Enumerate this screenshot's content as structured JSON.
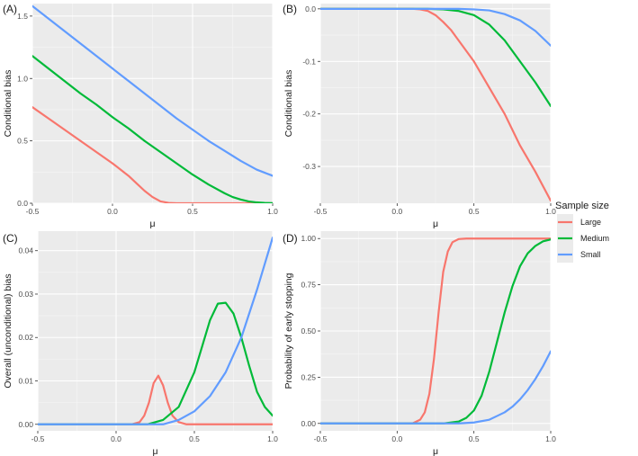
{
  "chart_data": [
    {
      "type": "line",
      "tag": "(A)",
      "xlabel": "μ",
      "ylabel": "Conditional bias",
      "xlim": [
        -0.5,
        1.0
      ],
      "ylim": [
        0,
        1.6
      ],
      "xticks": [
        -0.5,
        0.0,
        0.5,
        1.0
      ],
      "xtick_labels": [
        "-0.5",
        "0.0",
        "0.5",
        "1.0"
      ],
      "yticks": [
        0,
        0.5,
        1.0,
        1.5
      ],
      "ytick_labels": [
        "0.0",
        "0.5",
        "1.0",
        "1.5"
      ],
      "grid": true,
      "series": [
        {
          "name": "Large",
          "x": [
            -0.5,
            -0.4,
            -0.3,
            -0.2,
            -0.1,
            0.0,
            0.1,
            0.15,
            0.2,
            0.25,
            0.3,
            0.35,
            0.4,
            0.45,
            0.5,
            0.6,
            0.7,
            0.8,
            0.9,
            1.0
          ],
          "y": [
            0.77,
            0.68,
            0.59,
            0.5,
            0.41,
            0.32,
            0.22,
            0.16,
            0.1,
            0.05,
            0.015,
            0.003,
            0,
            0,
            0,
            0,
            0,
            0,
            0,
            0
          ]
        },
        {
          "name": "Medium",
          "x": [
            -0.5,
            -0.4,
            -0.3,
            -0.2,
            -0.1,
            0.0,
            0.1,
            0.2,
            0.3,
            0.4,
            0.5,
            0.6,
            0.7,
            0.75,
            0.8,
            0.85,
            0.9,
            0.95,
            1.0
          ],
          "y": [
            1.18,
            1.08,
            0.98,
            0.88,
            0.79,
            0.69,
            0.6,
            0.5,
            0.41,
            0.32,
            0.23,
            0.15,
            0.08,
            0.05,
            0.03,
            0.015,
            0.007,
            0.003,
            0.001
          ]
        },
        {
          "name": "Small",
          "x": [
            -0.5,
            -0.4,
            -0.3,
            -0.2,
            -0.1,
            0.0,
            0.1,
            0.2,
            0.3,
            0.4,
            0.5,
            0.6,
            0.7,
            0.8,
            0.9,
            1.0
          ],
          "y": [
            1.58,
            1.48,
            1.38,
            1.28,
            1.18,
            1.08,
            0.98,
            0.88,
            0.78,
            0.68,
            0.59,
            0.5,
            0.42,
            0.34,
            0.27,
            0.22
          ]
        }
      ]
    },
    {
      "type": "line",
      "tag": "(B)",
      "xlabel": "μ",
      "ylabel": "Conditional bias",
      "xlim": [
        -0.5,
        1.0
      ],
      "ylim": [
        -0.37,
        0.01
      ],
      "xticks": [
        -0.5,
        0.0,
        0.5,
        1.0
      ],
      "xtick_labels": [
        "-0.5",
        "0.0",
        "0.5",
        "1.0"
      ],
      "yticks": [
        0.0,
        -0.1,
        -0.2,
        -0.3
      ],
      "ytick_labels": [
        "0.0",
        "-0.1",
        "-0.2",
        "-0.3"
      ],
      "grid": true,
      "series": [
        {
          "name": "Large",
          "x": [
            -0.5,
            0.0,
            0.1,
            0.15,
            0.2,
            0.25,
            0.3,
            0.35,
            0.4,
            0.5,
            0.6,
            0.7,
            0.8,
            0.9,
            1.0
          ],
          "y": [
            0,
            0,
            0,
            -0.001,
            -0.004,
            -0.012,
            -0.025,
            -0.04,
            -0.06,
            -0.1,
            -0.15,
            -0.2,
            -0.26,
            -0.31,
            -0.365
          ]
        },
        {
          "name": "Medium",
          "x": [
            -0.5,
            0.2,
            0.3,
            0.4,
            0.5,
            0.6,
            0.7,
            0.8,
            0.9,
            1.0
          ],
          "y": [
            0,
            0,
            -0.001,
            -0.004,
            -0.012,
            -0.03,
            -0.06,
            -0.1,
            -0.14,
            -0.185
          ]
        },
        {
          "name": "Small",
          "x": [
            -0.5,
            0.4,
            0.5,
            0.6,
            0.7,
            0.8,
            0.9,
            1.0
          ],
          "y": [
            0,
            0,
            -0.001,
            -0.003,
            -0.01,
            -0.022,
            -0.042,
            -0.07
          ]
        }
      ]
    },
    {
      "type": "line",
      "tag": "(C)",
      "xlabel": "μ",
      "ylabel": "Overall (unconditional) bias",
      "xlim": [
        -0.5,
        1.0
      ],
      "ylim": [
        -0.0015,
        0.0445
      ],
      "xticks": [
        -0.5,
        0.0,
        0.5,
        1.0
      ],
      "xtick_labels": [
        "-0.5",
        "0.0",
        "0.5",
        "1.0"
      ],
      "yticks": [
        0,
        0.01,
        0.02,
        0.03,
        0.04
      ],
      "ytick_labels": [
        "0.00",
        "0.01",
        "0.02",
        "0.03",
        "0.04"
      ],
      "grid": true,
      "series": [
        {
          "name": "Large",
          "x": [
            -0.5,
            0.1,
            0.15,
            0.18,
            0.21,
            0.24,
            0.27,
            0.3,
            0.33,
            0.36,
            0.4,
            0.45,
            1.0
          ],
          "y": [
            0,
            0,
            0.0005,
            0.002,
            0.005,
            0.0095,
            0.0112,
            0.009,
            0.005,
            0.002,
            0.0005,
            0,
            0
          ]
        },
        {
          "name": "Medium",
          "x": [
            -0.5,
            0.2,
            0.3,
            0.4,
            0.5,
            0.55,
            0.6,
            0.65,
            0.7,
            0.75,
            0.8,
            0.85,
            0.9,
            0.95,
            1.0
          ],
          "y": [
            0,
            0,
            0.001,
            0.004,
            0.012,
            0.018,
            0.024,
            0.0278,
            0.028,
            0.0255,
            0.02,
            0.0135,
            0.0075,
            0.004,
            0.002
          ]
        },
        {
          "name": "Small",
          "x": [
            -0.5,
            0.3,
            0.4,
            0.5,
            0.6,
            0.7,
            0.8,
            0.9,
            0.95,
            1.0
          ],
          "y": [
            0,
            0,
            0.001,
            0.003,
            0.0065,
            0.012,
            0.02,
            0.031,
            0.037,
            0.043
          ]
        }
      ]
    },
    {
      "type": "line",
      "tag": "(D)",
      "xlabel": "μ",
      "ylabel": "Probability of early stopping",
      "xlim": [
        -0.5,
        1.0
      ],
      "ylim": [
        -0.04,
        1.04
      ],
      "xticks": [
        -0.5,
        0.0,
        0.5,
        1.0
      ],
      "xtick_labels": [
        "-0.5",
        "0.0",
        "0.5",
        "1.0"
      ],
      "yticks": [
        0,
        0.25,
        0.5,
        0.75,
        1.0
      ],
      "ytick_labels": [
        "0.00",
        "0.25",
        "0.50",
        "0.75",
        "1.00"
      ],
      "grid": true,
      "series": [
        {
          "name": "Large",
          "x": [
            -0.5,
            0.1,
            0.15,
            0.18,
            0.21,
            0.24,
            0.27,
            0.3,
            0.33,
            0.36,
            0.4,
            0.45,
            1.0
          ],
          "y": [
            0,
            0,
            0.02,
            0.06,
            0.16,
            0.35,
            0.6,
            0.82,
            0.93,
            0.98,
            0.997,
            1,
            1
          ]
        },
        {
          "name": "Medium",
          "x": [
            -0.5,
            0.3,
            0.4,
            0.45,
            0.5,
            0.55,
            0.6,
            0.65,
            0.7,
            0.75,
            0.8,
            0.85,
            0.9,
            0.95,
            1.0
          ],
          "y": [
            0,
            0,
            0.01,
            0.03,
            0.07,
            0.15,
            0.28,
            0.44,
            0.6,
            0.74,
            0.85,
            0.92,
            0.96,
            0.985,
            0.995
          ]
        },
        {
          "name": "Small",
          "x": [
            -0.5,
            0.4,
            0.5,
            0.6,
            0.65,
            0.7,
            0.75,
            0.8,
            0.85,
            0.9,
            0.95,
            1.0
          ],
          "y": [
            0,
            0,
            0.005,
            0.02,
            0.04,
            0.06,
            0.09,
            0.13,
            0.18,
            0.24,
            0.31,
            0.39
          ]
        }
      ]
    }
  ],
  "legend": {
    "title": "Sample size",
    "placement": "right",
    "entries": [
      {
        "name": "Large",
        "color": "#F8766D"
      },
      {
        "name": "Medium",
        "color": "#00BA38"
      },
      {
        "name": "Small",
        "color": "#619CFF"
      }
    ]
  }
}
